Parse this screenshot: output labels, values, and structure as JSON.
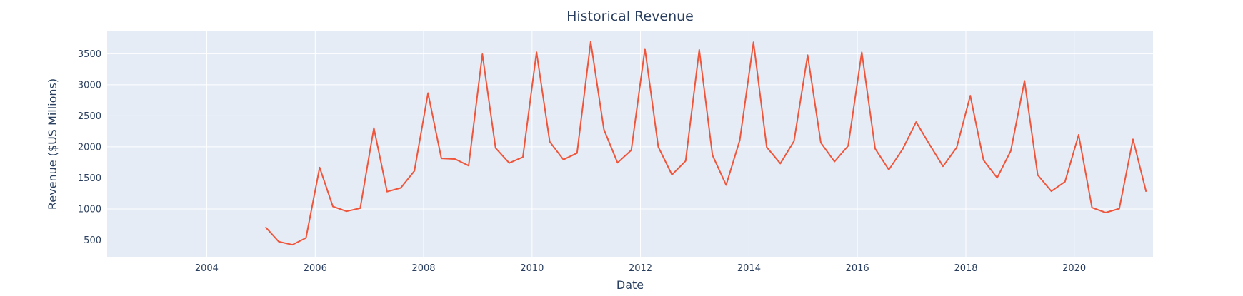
{
  "chart_data": {
    "type": "line",
    "title": "Historical Revenue",
    "xlabel": "Date",
    "ylabel": "Revenue ($US Millions)",
    "x_range": [
      "2002-03-01",
      "2021-06-15"
    ],
    "y_range": [
      230,
      3860
    ],
    "x_ticks": [
      "2004",
      "2006",
      "2008",
      "2010",
      "2012",
      "2014",
      "2016",
      "2018",
      "2020"
    ],
    "y_ticks": [
      500,
      1000,
      1500,
      2000,
      2500,
      3000,
      3500
    ],
    "grid": true,
    "legend": "none",
    "colors": {
      "plot_bg": "#E5ECF6",
      "grid": "#ffffff",
      "line": "#EF553B",
      "text": "#2a3f5f"
    },
    "series": [
      {
        "x": [
          "2005-01-31",
          "2005-04-30",
          "2005-07-31",
          "2005-10-31",
          "2006-01-31",
          "2006-04-30",
          "2006-07-31",
          "2006-10-31",
          "2007-01-31",
          "2007-04-30",
          "2007-07-31",
          "2007-10-31",
          "2008-01-31",
          "2008-04-30",
          "2008-07-31",
          "2008-10-31",
          "2009-01-31",
          "2009-04-30",
          "2009-07-31",
          "2009-10-31",
          "2010-01-31",
          "2010-04-30",
          "2010-07-31",
          "2010-10-31",
          "2011-01-31",
          "2011-04-30",
          "2011-07-31",
          "2011-10-31",
          "2012-01-31",
          "2012-04-30",
          "2012-07-31",
          "2012-10-31",
          "2013-01-31",
          "2013-04-30",
          "2013-07-31",
          "2013-10-31",
          "2014-01-31",
          "2014-04-30",
          "2014-07-31",
          "2014-10-31",
          "2015-01-31",
          "2015-04-30",
          "2015-07-31",
          "2015-10-31",
          "2016-01-31",
          "2016-04-30",
          "2016-07-31",
          "2016-10-31",
          "2017-01-31",
          "2017-04-30",
          "2017-07-31",
          "2017-10-31",
          "2018-01-31",
          "2018-04-30",
          "2018-07-31",
          "2018-10-31",
          "2019-01-31",
          "2019-04-30",
          "2019-07-31",
          "2019-10-31",
          "2020-01-31",
          "2020-04-30",
          "2020-07-31",
          "2020-10-31",
          "2021-01-31",
          "2021-04-30"
        ],
        "values": [
          709,
          475,
          424,
          534,
          1667,
          1040,
          963,
          1012,
          2304,
          1279,
          1338,
          1611,
          2866,
          1814,
          1804,
          1697,
          3492,
          1981,
          1739,
          1835,
          3524,
          2083,
          1795,
          1899,
          3693,
          2281,
          1744,
          1947,
          3579,
          1998,
          1550,
          1773,
          3562,
          1865,
          1386,
          2107,
          3684,
          1996,
          1731,
          2092,
          3476,
          2066,
          1762,
          2016,
          3525,
          1972,
          1632,
          1959,
          2400,
          2044,
          1687,
          1989,
          2825,
          1786,
          1502,
          1935,
          3063,
          1547,
          1286,
          1439,
          2194,
          1021,
          942,
          1005,
          2122,
          1277
        ]
      }
    ]
  }
}
